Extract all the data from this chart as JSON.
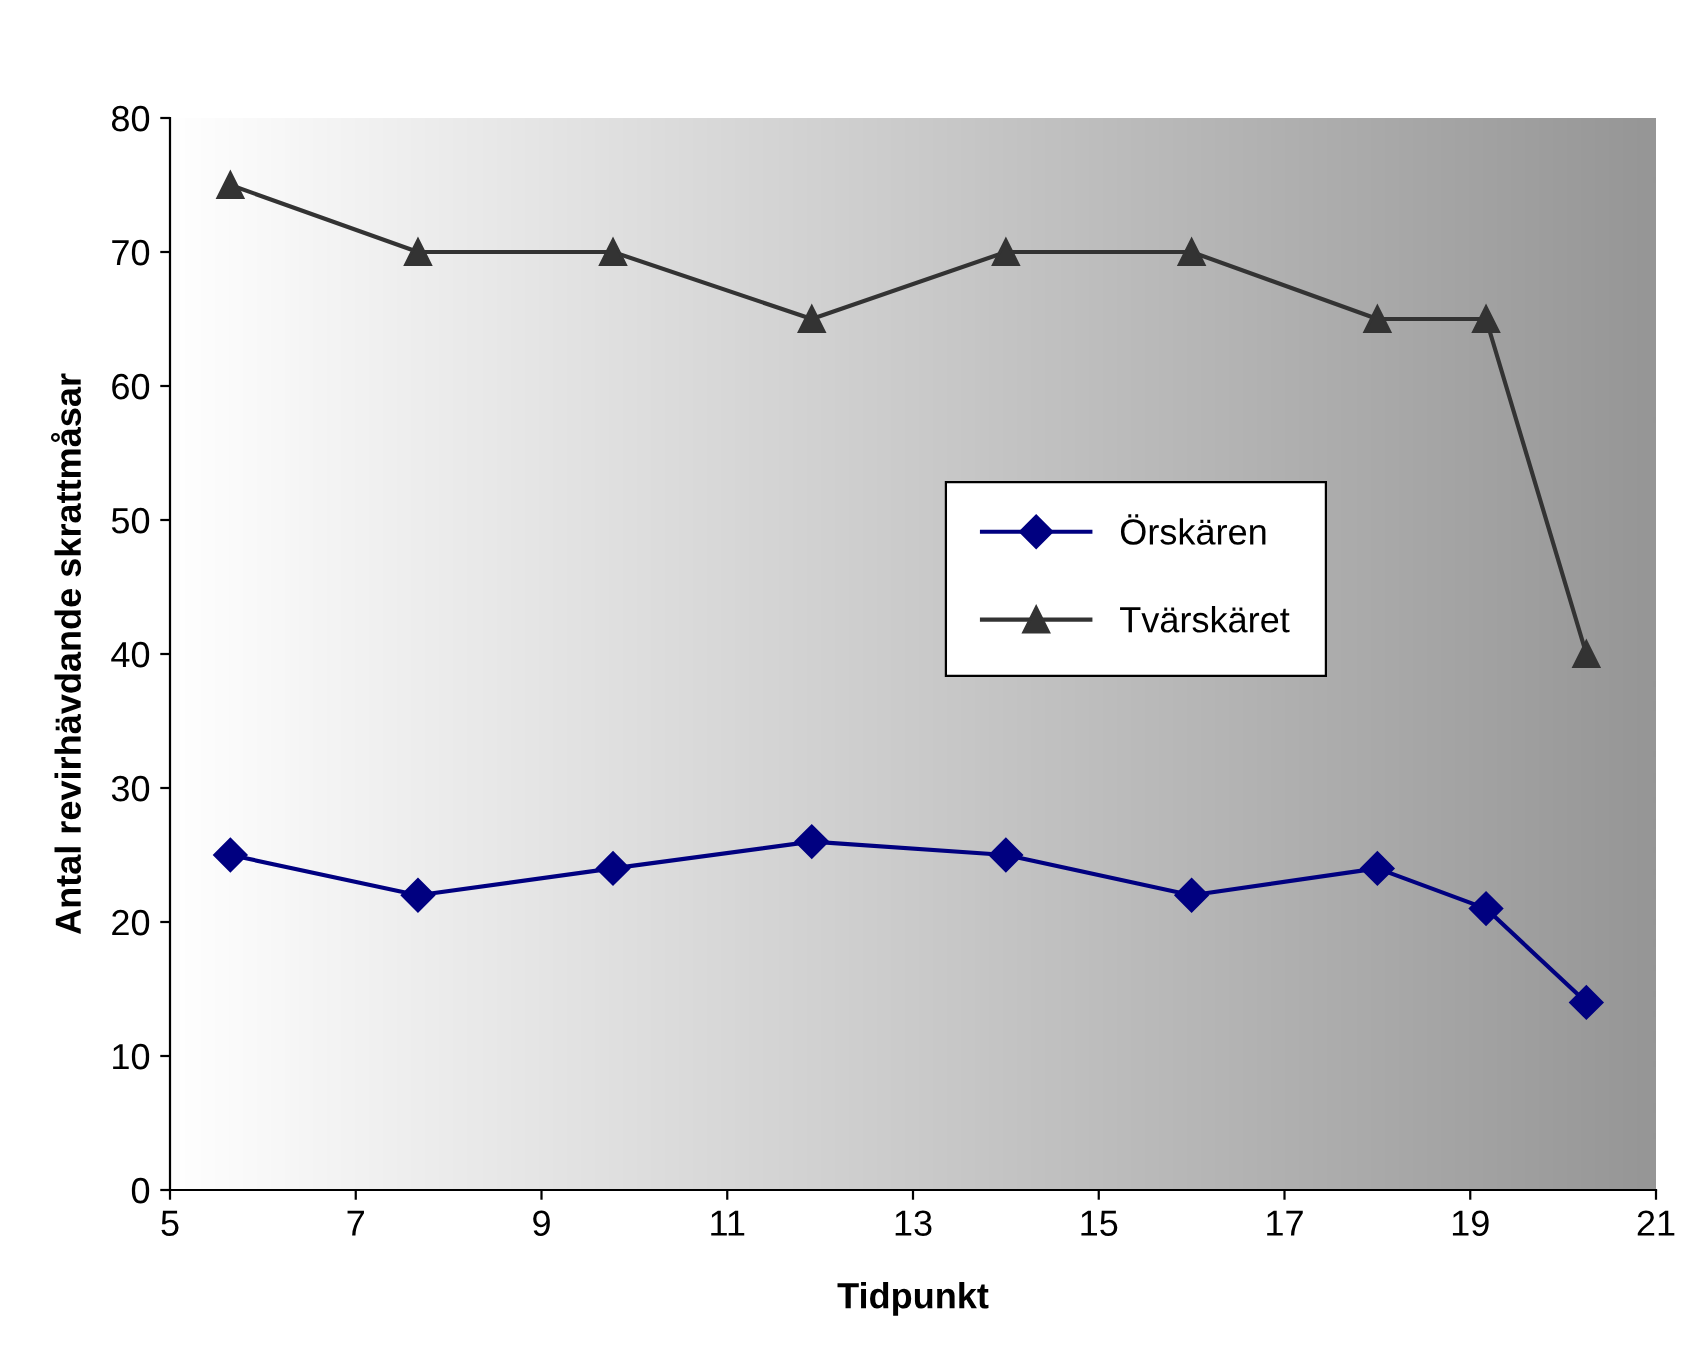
{
  "chart_data": {
    "type": "line",
    "xlabel": "Tidpunkt",
    "ylabel": "Antal revirhävdande skrattmåsar",
    "x": [
      5.65,
      7.67,
      9.77,
      11.91,
      14.0,
      16.0,
      18.0,
      19.17,
      20.25
    ],
    "series": [
      {
        "name": "Örskären",
        "color": "#000080",
        "marker": "diamond",
        "values": [
          25,
          22,
          24,
          26,
          25,
          22,
          24,
          21,
          14
        ]
      },
      {
        "name": "Tvärskäret",
        "color": "#333333",
        "marker": "triangle",
        "values": [
          75,
          70,
          70,
          65,
          70,
          70,
          65,
          65,
          40
        ]
      }
    ],
    "xlim": [
      5,
      21
    ],
    "xticks": [
      5,
      7,
      9,
      11,
      13,
      15,
      17,
      19,
      21
    ],
    "ylim": [
      0,
      80
    ],
    "yticks": [
      0,
      10,
      20,
      30,
      40,
      50,
      60,
      70,
      80
    ],
    "grid": false,
    "legend": "right",
    "line_style": "solid"
  }
}
